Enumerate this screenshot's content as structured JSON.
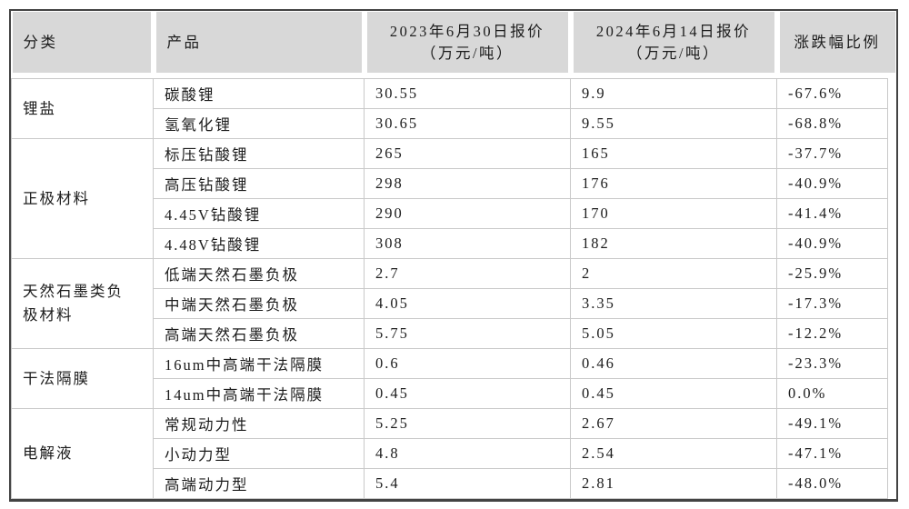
{
  "colors": {
    "header_bg": "#d8d8d8",
    "outer_border": "#434343",
    "grid_line": "#c9c9c9",
    "text": "#1c1c1c"
  },
  "table": {
    "columns": [
      {
        "title": "分类",
        "unit": ""
      },
      {
        "title": "产品",
        "unit": ""
      },
      {
        "title": "2023年6月30日报价",
        "unit": "（万元/吨）"
      },
      {
        "title": "2024年6月14日报价",
        "unit": "（万元/吨）"
      },
      {
        "title": "涨跌幅比例",
        "unit": ""
      }
    ],
    "groups": [
      {
        "category": "锂盐",
        "rows": [
          [
            "碳酸锂",
            "30.55",
            "9.9",
            "-67.6%"
          ],
          [
            "氢氧化锂",
            "30.65",
            "9.55",
            "-68.8%"
          ]
        ]
      },
      {
        "category": "正极材料",
        "rows": [
          [
            "标压钻酸锂",
            "265",
            "165",
            "-37.7%"
          ],
          [
            "高压钻酸锂",
            "298",
            "176",
            "-40.9%"
          ],
          [
            "4.45V钻酸锂",
            "290",
            "170",
            "-41.4%"
          ],
          [
            "4.48V钻酸锂",
            "308",
            "182",
            "-40.9%"
          ]
        ]
      },
      {
        "category": "天然石墨类负极材料",
        "rows": [
          [
            "低端天然石墨负极",
            "2.7",
            "2",
            "-25.9%"
          ],
          [
            "中端天然石墨负极",
            "4.05",
            "3.35",
            "-17.3%"
          ],
          [
            "高端天然石墨负极",
            "5.75",
            "5.05",
            "-12.2%"
          ]
        ]
      },
      {
        "category": "干法隔膜",
        "rows": [
          [
            "16um中高端干法隔膜",
            "0.6",
            "0.46",
            "-23.3%"
          ],
          [
            "14um中高端干法隔膜",
            "0.45",
            "0.45",
            "0.0%"
          ]
        ]
      },
      {
        "category": "电解液",
        "rows": [
          [
            "常规动力性",
            "5.25",
            "2.67",
            "-49.1%"
          ],
          [
            "小动力型",
            "4.8",
            "2.54",
            "-47.1%"
          ],
          [
            "高端动力型",
            "5.4",
            "2.81",
            "-48.0%"
          ]
        ]
      }
    ]
  },
  "chart_data": {
    "type": "table",
    "columns": [
      "分类",
      "产品",
      "2023年6月30日报价（万元/吨）",
      "2024年6月14日报价（万元/吨）",
      "涨跌幅比例"
    ],
    "rows": [
      [
        "锂盐",
        "碳酸锂",
        30.55,
        9.9,
        "-67.6%"
      ],
      [
        "锂盐",
        "氢氧化锂",
        30.65,
        9.55,
        "-68.8%"
      ],
      [
        "正极材料",
        "标压钻酸锂",
        265,
        165,
        "-37.7%"
      ],
      [
        "正极材料",
        "高压钻酸锂",
        298,
        176,
        "-40.9%"
      ],
      [
        "正极材料",
        "4.45V钻酸锂",
        290,
        170,
        "-41.4%"
      ],
      [
        "正极材料",
        "4.48V钻酸锂",
        308,
        182,
        "-40.9%"
      ],
      [
        "天然石墨类负极材料",
        "低端天然石墨负极",
        2.7,
        2,
        "-25.9%"
      ],
      [
        "天然石墨类负极材料",
        "中端天然石墨负极",
        4.05,
        3.35,
        "-17.3%"
      ],
      [
        "天然石墨类负极材料",
        "高端天然石墨负极",
        5.75,
        5.05,
        "-12.2%"
      ],
      [
        "干法隔膜",
        "16um中高端干法隔膜",
        0.6,
        0.46,
        "-23.3%"
      ],
      [
        "干法隔膜",
        "14um中高端干法隔膜",
        0.45,
        0.45,
        "0.0%"
      ],
      [
        "电解液",
        "常规动力性",
        5.25,
        2.67,
        "-49.1%"
      ],
      [
        "电解液",
        "小动力型",
        4.8,
        2.54,
        "-47.1%"
      ],
      [
        "电解液",
        "高端动力型",
        5.4,
        2.81,
        "-48.0%"
      ]
    ]
  }
}
